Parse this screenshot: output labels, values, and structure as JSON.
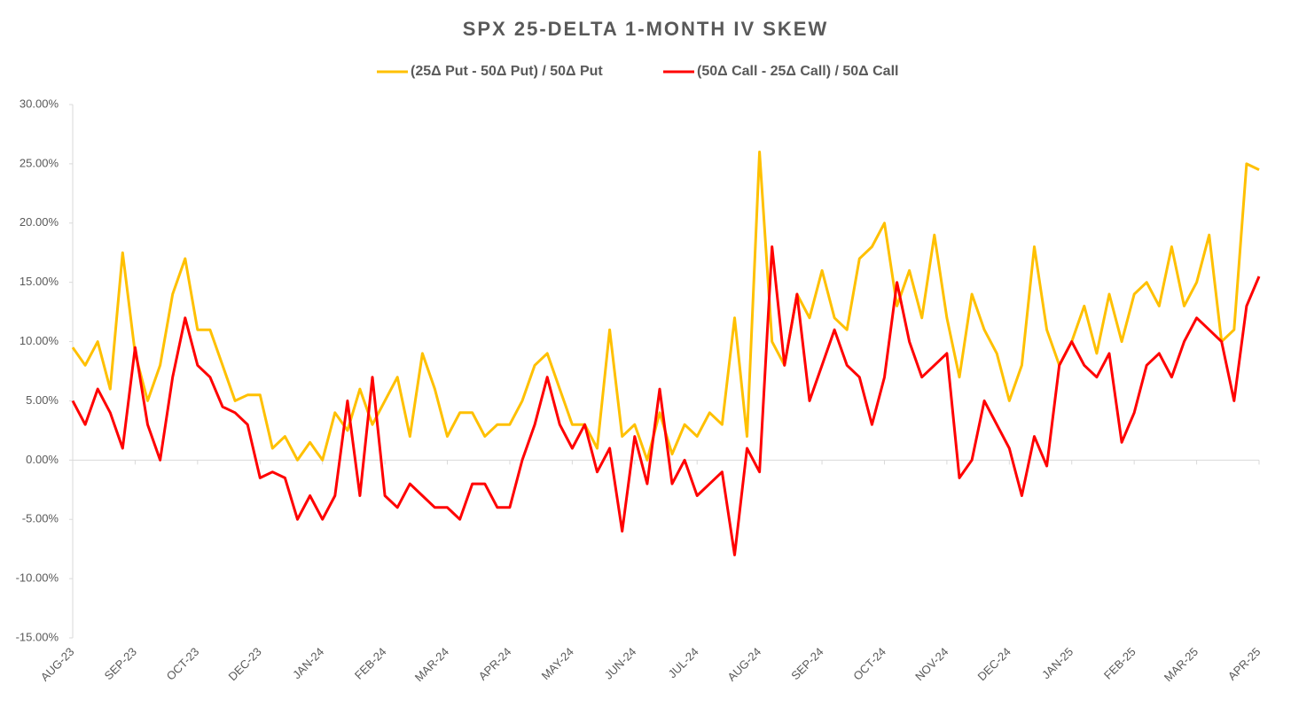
{
  "chart_data": {
    "type": "line",
    "title": "SPX 25-DELTA 1-MONTH IV SKEW",
    "categories": [
      "AUG-23",
      null,
      null,
      null,
      null,
      "SEP-23",
      null,
      null,
      null,
      null,
      "OCT-23",
      null,
      null,
      null,
      null,
      "DEC-23",
      null,
      null,
      null,
      null,
      "JAN-24",
      null,
      null,
      null,
      null,
      "FEB-24",
      null,
      null,
      null,
      null,
      "MAR-24",
      null,
      null,
      null,
      null,
      "APR-24",
      null,
      null,
      null,
      null,
      "MAY-24",
      null,
      null,
      null,
      null,
      "JUN-24",
      null,
      null,
      null,
      null,
      "JUL-24",
      null,
      null,
      null,
      null,
      "AUG-24",
      null,
      null,
      null,
      null,
      "SEP-24",
      null,
      null,
      null,
      null,
      "OCT-24",
      null,
      null,
      null,
      null,
      "NOV-24",
      null,
      null,
      null,
      null,
      "DEC-24",
      null,
      null,
      null,
      null,
      "JAN-25",
      null,
      null,
      null,
      null,
      "FEB-25",
      null,
      null,
      null,
      null,
      "MAR-25",
      null,
      null,
      null,
      null,
      "APR-25"
    ],
    "series": [
      {
        "name": "(25Δ Put - 50Δ Put) / 50Δ Put",
        "color": "#ffc000",
        "values": [
          9.5,
          8,
          10,
          6,
          17.5,
          9,
          5,
          8,
          14,
          17,
          11,
          11,
          8,
          5,
          5.5,
          5.5,
          1,
          2,
          0,
          1.5,
          0,
          4,
          2.5,
          6,
          3,
          5,
          7,
          2,
          9,
          6,
          2,
          4,
          4,
          2,
          3,
          3,
          5,
          8,
          9,
          6,
          3,
          3,
          1,
          11,
          2,
          3,
          0,
          4,
          0.5,
          3,
          2,
          4,
          3,
          12,
          2,
          26,
          10,
          8,
          14,
          12,
          16,
          12,
          11,
          17,
          18,
          20,
          13,
          16,
          12,
          19,
          12,
          7,
          14,
          11,
          9,
          5,
          8,
          18,
          11,
          8,
          10,
          13,
          9,
          14,
          10,
          14,
          15,
          13,
          18,
          13,
          15,
          19,
          10,
          11,
          25,
          24.5
        ]
      },
      {
        "name": "(50Δ Call - 25Δ Call) / 50Δ Call",
        "color": "#ff0000",
        "values": [
          5,
          3,
          6,
          4,
          1,
          9.5,
          3,
          0,
          7,
          12,
          8,
          7,
          4.5,
          4,
          3,
          -1.5,
          -1,
          -1.5,
          -5,
          -3,
          -5,
          -3,
          5,
          -3,
          7,
          -3,
          -4,
          -2,
          -3,
          -4,
          -4,
          -5,
          -2,
          -2,
          -4,
          -4,
          0,
          3,
          7,
          3,
          1,
          3,
          -1,
          1,
          -6,
          2,
          -2,
          6,
          -2,
          0,
          -3,
          -2,
          -1,
          -8,
          1,
          -1,
          18,
          8,
          14,
          5,
          8,
          11,
          8,
          7,
          3,
          7,
          15,
          10,
          7,
          8,
          9,
          -1.5,
          0,
          5,
          3,
          1,
          -3,
          2,
          -0.5,
          8,
          10,
          8,
          7,
          9,
          1.5,
          4,
          8,
          9,
          7,
          10,
          12,
          11,
          10,
          5,
          13,
          15.5
        ]
      }
    ],
    "ylim": [
      -15,
      30
    ],
    "yticks": [
      {
        "value": -15,
        "label": "-15.00%"
      },
      {
        "value": -10,
        "label": "-10.00%"
      },
      {
        "value": -5,
        "label": "-5.00%"
      },
      {
        "value": 0,
        "label": "0.00%"
      },
      {
        "value": 5,
        "label": "5.00%"
      },
      {
        "value": 10,
        "label": "10.00%"
      },
      {
        "value": 15,
        "label": "15.00%"
      },
      {
        "value": 20,
        "label": "20.00%"
      },
      {
        "value": 25,
        "label": "25.00%"
      },
      {
        "value": 30,
        "label": "30.00%"
      }
    ],
    "grid": false,
    "legend": "top"
  }
}
